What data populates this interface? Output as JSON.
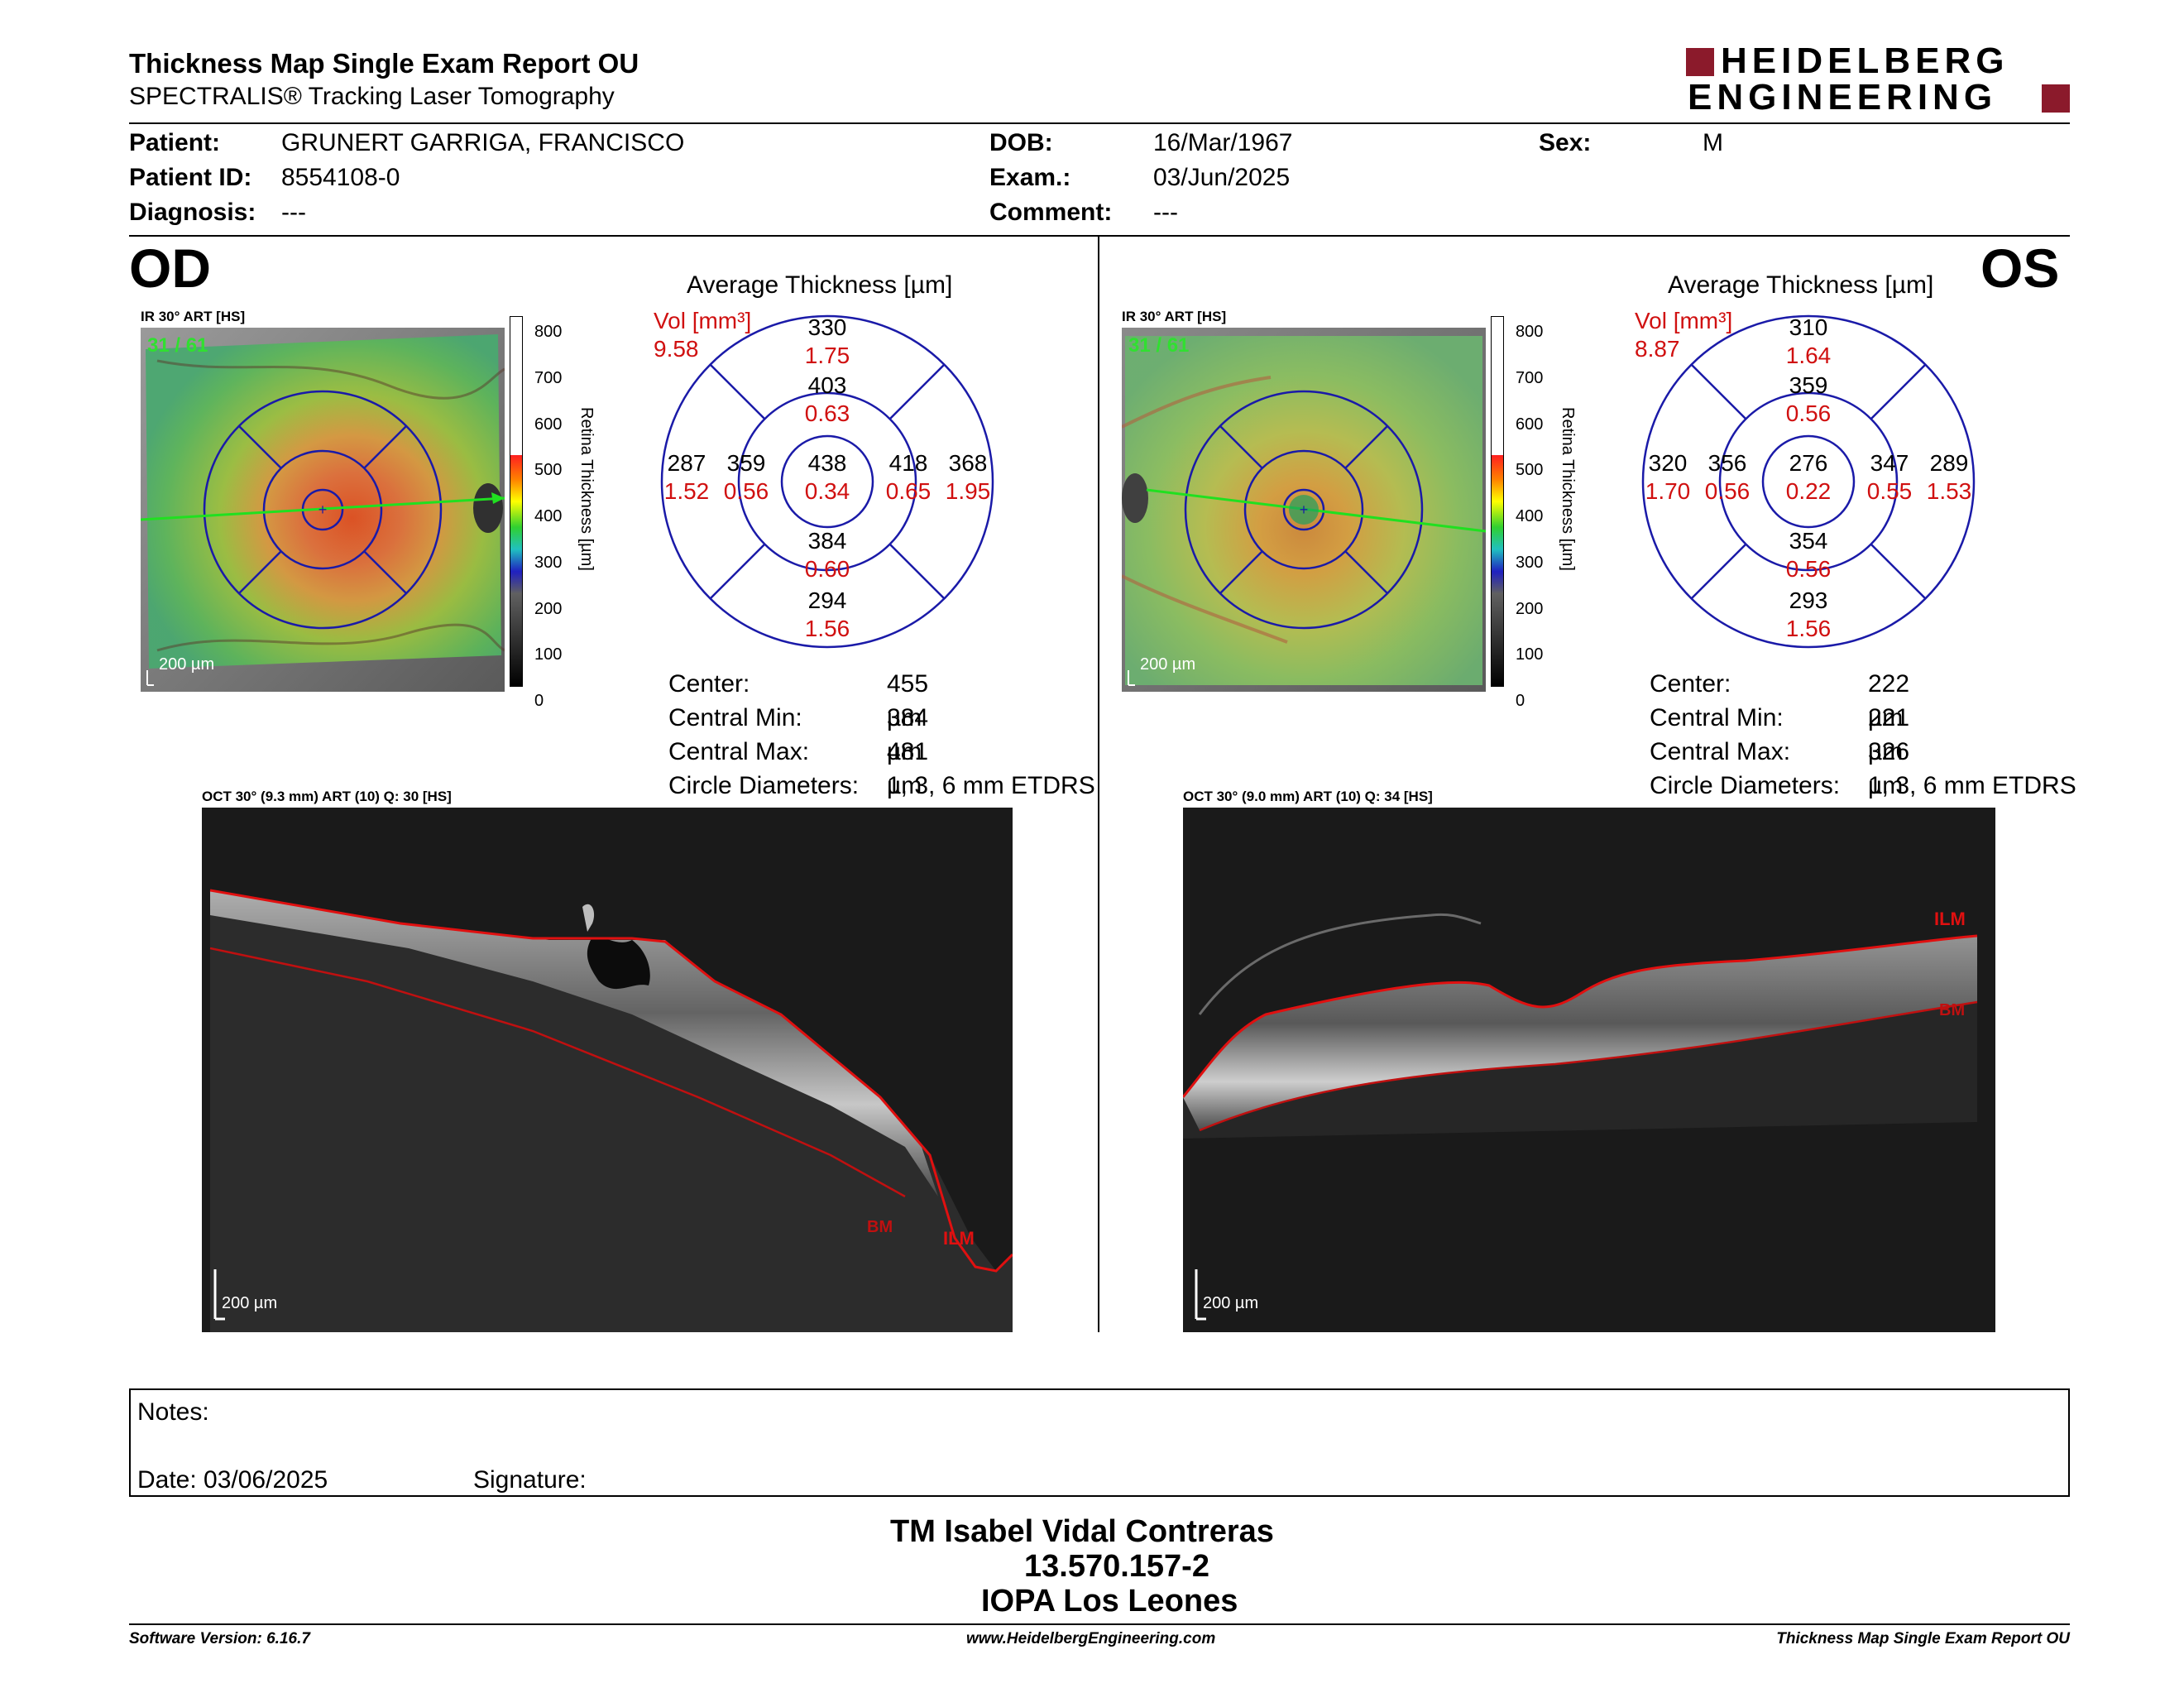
{
  "header": {
    "title": "Thickness Map Single Exam Report OU",
    "subtitle": "SPECTRALIS® Tracking Laser Tomography",
    "logo_line1": "HEIDELBERG",
    "logo_line2": "ENGINEERING"
  },
  "patient": {
    "patient_label": "Patient:",
    "patient_value": "GRUNERT GARRIGA, FRANCISCO",
    "id_label": "Patient ID:",
    "id_value": "8554108-0",
    "diagnosis_label": "Diagnosis:",
    "diagnosis_value": "---",
    "dob_label": "DOB:",
    "dob_value": "16/Mar/1967",
    "exam_label": "Exam.:",
    "exam_value": "03/Jun/2025",
    "comment_label": "Comment:",
    "comment_value": "---",
    "sex_label": "Sex:",
    "sex_value": "M"
  },
  "od": {
    "eye": "OD",
    "ir_label": "IR 30° ART [HS]",
    "frame": "31 / 61",
    "scale": "200 µm",
    "colorbar_ticks": [
      "800",
      "700",
      "600",
      "500",
      "400",
      "300",
      "200",
      "100",
      "0"
    ],
    "colorbar_title": "Retina Thickness [µm]",
    "avg_title": "Average Thickness [µm]",
    "vol_label": "Vol [mm³]",
    "vol_value": "9.58",
    "grid": {
      "center": {
        "t": "438",
        "v": "0.34"
      },
      "inner_sup": {
        "t": "403",
        "v": "0.63"
      },
      "inner_inf": {
        "t": "384",
        "v": "0.60"
      },
      "inner_left": {
        "t": "359",
        "v": "0.56"
      },
      "inner_right": {
        "t": "418",
        "v": "0.65"
      },
      "outer_sup": {
        "t": "330",
        "v": "1.75"
      },
      "outer_inf": {
        "t": "294",
        "v": "1.56"
      },
      "outer_left": {
        "t": "287",
        "v": "1.52"
      },
      "outer_right": {
        "t": "368",
        "v": "1.95"
      }
    },
    "stats": [
      {
        "label": "Center:",
        "value": "455 µm"
      },
      {
        "label": "Central Min:",
        "value": "384 µm"
      },
      {
        "label": "Central Max:",
        "value": "481 µm"
      },
      {
        "label": "Circle Diameters:",
        "value": "1, 3, 6 mm ETDRS"
      }
    ],
    "oct_label": "OCT 30° (9.3 mm) ART (10) Q: 30 [HS]",
    "oct_scale": "200 µm",
    "ilm": "ILM",
    "bm": "BM"
  },
  "os": {
    "eye": "OS",
    "ir_label": "IR 30° ART [HS]",
    "frame": "31 / 61",
    "scale": "200 µm",
    "colorbar_ticks": [
      "800",
      "700",
      "600",
      "500",
      "400",
      "300",
      "200",
      "100",
      "0"
    ],
    "colorbar_title": "Retina Thickness [µm]",
    "avg_title": "Average Thickness [µm]",
    "vol_label": "Vol [mm³]",
    "vol_value": "8.87",
    "grid": {
      "center": {
        "t": "276",
        "v": "0.22"
      },
      "inner_sup": {
        "t": "359",
        "v": "0.56"
      },
      "inner_inf": {
        "t": "354",
        "v": "0.56"
      },
      "inner_left": {
        "t": "356",
        "v": "0.56"
      },
      "inner_right": {
        "t": "347",
        "v": "0.55"
      },
      "outer_sup": {
        "t": "310",
        "v": "1.64"
      },
      "outer_inf": {
        "t": "293",
        "v": "1.56"
      },
      "outer_left": {
        "t": "320",
        "v": "1.70"
      },
      "outer_right": {
        "t": "289",
        "v": "1.53"
      }
    },
    "stats": [
      {
        "label": "Center:",
        "value": "222 µm"
      },
      {
        "label": "Central Min:",
        "value": "221 µm"
      },
      {
        "label": "Central Max:",
        "value": "326 µm"
      },
      {
        "label": "Circle Diameters:",
        "value": "1, 3, 6 mm ETDRS"
      }
    ],
    "oct_label": "OCT 30° (9.0 mm) ART (10) Q: 34 [HS]",
    "oct_scale": "200 µm",
    "ilm": "ILM",
    "bm": "BM"
  },
  "notes": {
    "notes_label": "Notes:",
    "date_label": "Date: 03/06/2025",
    "signature_label": "Signature:"
  },
  "signer": {
    "name": "TM Isabel Vidal Contreras",
    "id": "13.570.157-2",
    "clinic": "IOPA Los Leones"
  },
  "footer": {
    "software": "Software Version: 6.16.7",
    "website": "www.HeidelbergEngineering.com",
    "report": "Thickness Map Single Exam Report OU"
  },
  "colors": {
    "logo_red": "#8b1a2b",
    "grid_blue": "#1a1aa8",
    "volume_red": "#d01010",
    "ilm_red": "#e01010"
  }
}
